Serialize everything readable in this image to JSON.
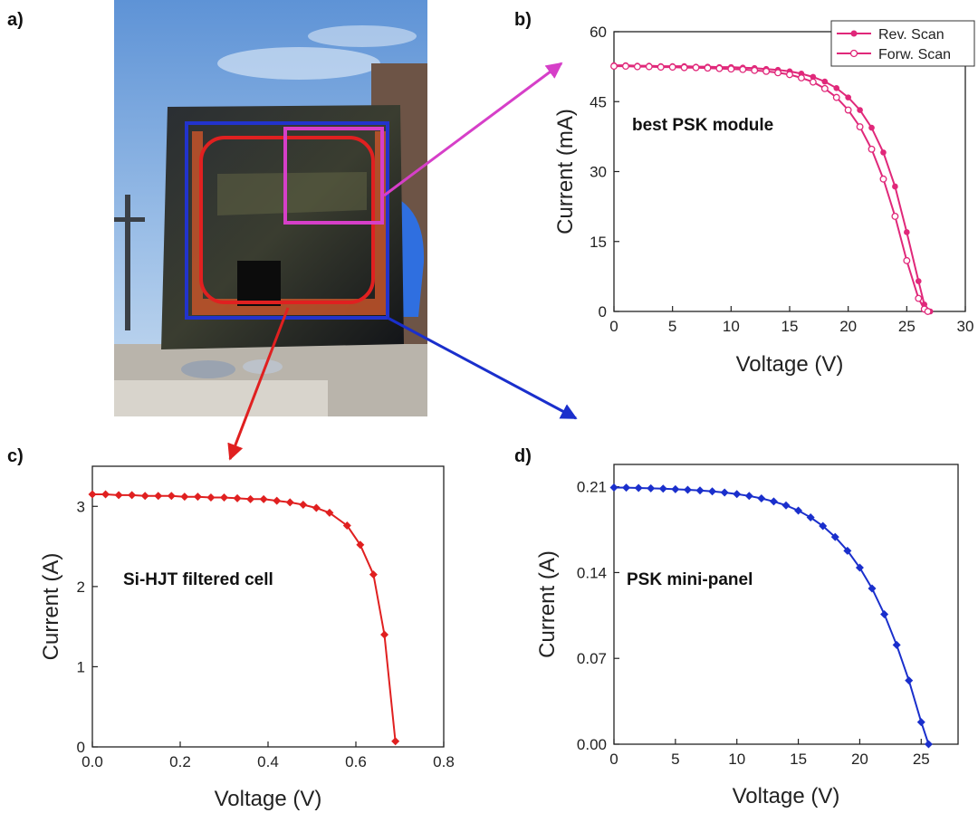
{
  "panel_labels": [
    "a)",
    "b)",
    "c)",
    "d)"
  ],
  "photo": {
    "description_icons": [
      "photo-sky",
      "module-glass",
      "hand-glove"
    ]
  },
  "colors": {
    "pink": "#e0287a",
    "red": "#e02020",
    "blue": "#1a2fcc",
    "magenta_box": "#d63fc8",
    "photo_blue_box": "#2233cc"
  },
  "chart_data": [
    {
      "type": "line",
      "panel": "b)",
      "xlabel": "Voltage (V)",
      "ylabel": "Current (mA)",
      "xlim": [
        0,
        30
      ],
      "ylim": [
        0,
        60
      ],
      "xticks": [
        "0",
        "5",
        "10",
        "15",
        "20",
        "25",
        "30"
      ],
      "yticks": [
        "0",
        "15",
        "30",
        "45",
        "60"
      ],
      "annotation": "best PSK module",
      "legend_position": "top-right",
      "series": [
        {
          "name": "Rev. Scan",
          "marker": "filled-circle",
          "x": [
            0,
            1,
            2,
            3,
            4,
            5,
            6,
            7,
            8,
            9,
            10,
            11,
            12,
            13,
            14,
            15,
            16,
            17,
            18,
            19,
            20,
            21,
            22,
            23,
            24,
            25,
            26,
            26.5,
            27
          ],
          "y": [
            52.8,
            52.8,
            52.7,
            52.7,
            52.6,
            52.6,
            52.6,
            52.5,
            52.5,
            52.4,
            52.4,
            52.3,
            52.2,
            52.0,
            51.8,
            51.5,
            51.0,
            50.3,
            49.3,
            47.9,
            45.9,
            43.2,
            39.4,
            34.1,
            26.8,
            17.0,
            6.5,
            1.5,
            0
          ]
        },
        {
          "name": "Forw. Scan",
          "marker": "open-circle",
          "x": [
            0,
            1,
            2,
            3,
            4,
            5,
            6,
            7,
            8,
            9,
            10,
            11,
            12,
            13,
            14,
            15,
            16,
            17,
            18,
            19,
            20,
            21,
            22,
            23,
            24,
            25,
            26,
            26.5,
            26.8
          ],
          "y": [
            52.6,
            52.6,
            52.5,
            52.5,
            52.4,
            52.4,
            52.3,
            52.3,
            52.2,
            52.1,
            52.0,
            51.9,
            51.7,
            51.5,
            51.2,
            50.8,
            50.1,
            49.2,
            47.8,
            45.9,
            43.2,
            39.6,
            34.8,
            28.4,
            20.4,
            10.9,
            2.8,
            0.5,
            0
          ]
        }
      ]
    },
    {
      "type": "line",
      "panel": "c)",
      "xlabel": "Voltage (V)",
      "ylabel": "Current (A)",
      "xlim": [
        0,
        0.8
      ],
      "ylim": [
        0,
        3.5
      ],
      "xticks": [
        "0.0",
        "0.2",
        "0.4",
        "0.6",
        "0.8"
      ],
      "yticks": [
        "0",
        "1",
        "2",
        "3"
      ],
      "annotation": "Si-HJT filtered cell",
      "series": [
        {
          "marker": "filled-diamond",
          "x": [
            0.0,
            0.03,
            0.06,
            0.09,
            0.12,
            0.15,
            0.18,
            0.21,
            0.24,
            0.27,
            0.3,
            0.33,
            0.36,
            0.39,
            0.42,
            0.45,
            0.48,
            0.51,
            0.54,
            0.58,
            0.61,
            0.64,
            0.665,
            0.69
          ],
          "y": [
            3.15,
            3.15,
            3.14,
            3.14,
            3.13,
            3.13,
            3.13,
            3.12,
            3.12,
            3.11,
            3.11,
            3.1,
            3.09,
            3.09,
            3.07,
            3.05,
            3.02,
            2.98,
            2.92,
            2.76,
            2.52,
            2.15,
            1.4,
            0.07
          ]
        }
      ]
    },
    {
      "type": "line",
      "panel": "d)",
      "xlabel": "Voltage (V)",
      "ylabel": "Current (A)",
      "xlim": [
        0,
        28
      ],
      "ylim": [
        0,
        0.2282
      ],
      "xticks": [
        "0",
        "5",
        "10",
        "15",
        "20",
        "25"
      ],
      "yticks": [
        "0.00",
        "0.07",
        "0.14",
        "0.21"
      ],
      "annotation": "PSK mini-panel",
      "series": [
        {
          "marker": "filled-diamond",
          "x": [
            0,
            1,
            2,
            3,
            4,
            5,
            6,
            7,
            8,
            9,
            10,
            11,
            12,
            13,
            14,
            15,
            16,
            17,
            18,
            19,
            20,
            21,
            22,
            23,
            24,
            25,
            25.6
          ],
          "y": [
            0.2094,
            0.2093,
            0.209,
            0.2087,
            0.2084,
            0.208,
            0.2075,
            0.207,
            0.2062,
            0.2053,
            0.204,
            0.2025,
            0.2005,
            0.198,
            0.1948,
            0.1905,
            0.185,
            0.178,
            0.169,
            0.1578,
            0.144,
            0.127,
            0.106,
            0.081,
            0.052,
            0.018,
            0.0
          ]
        }
      ]
    }
  ]
}
